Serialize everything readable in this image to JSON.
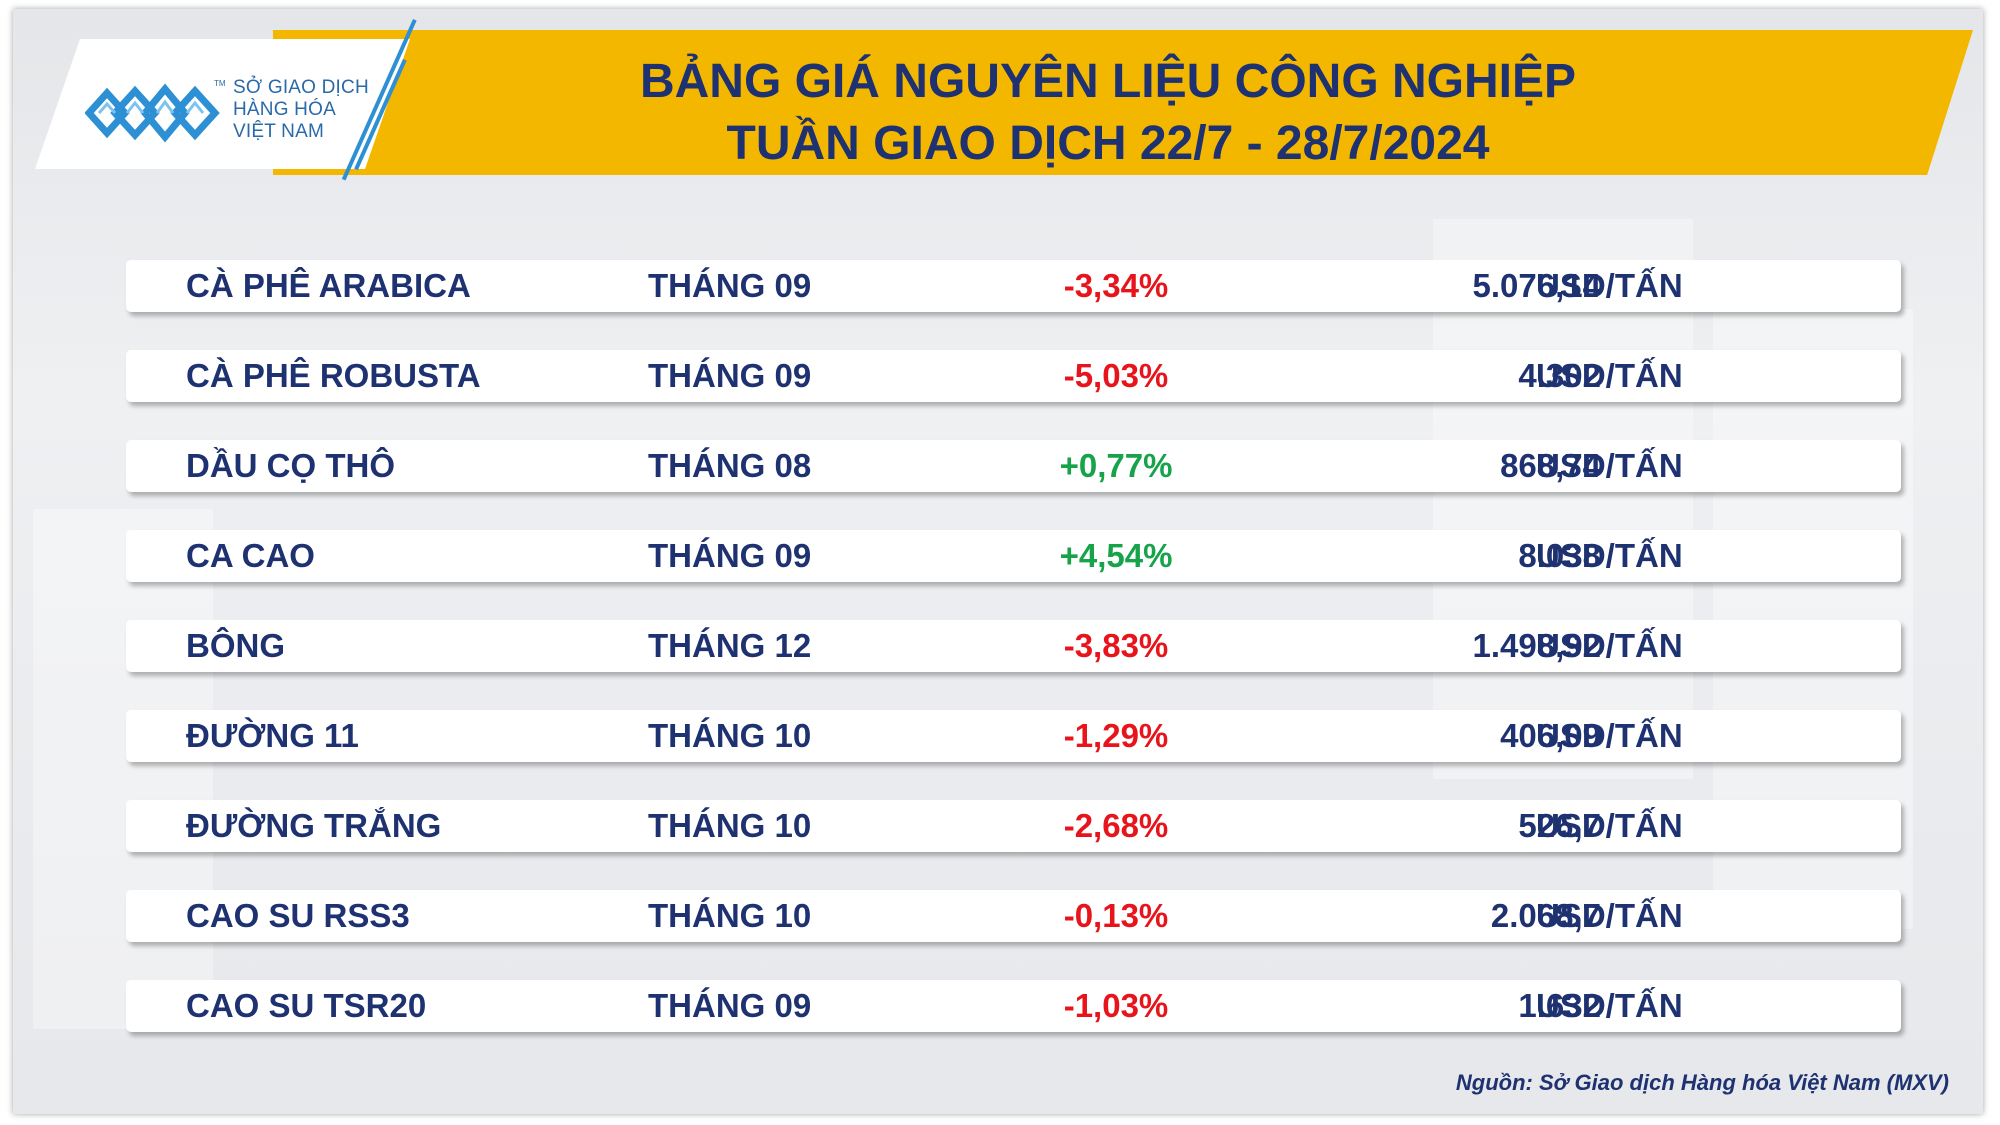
{
  "logo": {
    "line1": "SỞ GIAO DỊCH",
    "line2": "HÀNG HÓA",
    "line3": "VIỆT NAM",
    "tm": "TM",
    "color": "#2d8fd4"
  },
  "header": {
    "title_line1": "BẢNG GIÁ NGUYÊN LIỆU CÔNG NGHIỆP",
    "title_line2": "TUẦN GIAO DỊCH 22/7 - 28/7/2024",
    "band_color": "#f3b700",
    "text_color": "#1e3170"
  },
  "table": {
    "rows": [
      {
        "name": "CÀ PHÊ ARABICA",
        "month": "THÁNG 09",
        "change": "-3,34%",
        "direction": "down",
        "price": "5.076,14",
        "unit": "USD/TẤN"
      },
      {
        "name": "CÀ PHÊ ROBUSTA",
        "month": "THÁNG 09",
        "change": "-5,03%",
        "direction": "down",
        "price": "4.302",
        "unit": "USD/TẤN"
      },
      {
        "name": "DẦU CỌ THÔ",
        "month": "THÁNG 08",
        "change": "+0,77%",
        "direction": "up",
        "price": "868,74",
        "unit": "USD/TẤN"
      },
      {
        "name": "CA CAO",
        "month": "THÁNG 09",
        "change": "+4,54%",
        "direction": "up",
        "price": "8.038",
        "unit": "USD/TẤN"
      },
      {
        "name": "BÔNG",
        "month": "THÁNG 12",
        "change": "-3,83%",
        "direction": "down",
        "price": "1.498,92",
        "unit": "USD/TẤN"
      },
      {
        "name": "ĐƯỜNG 11",
        "month": "THÁNG 10",
        "change": "-1,29%",
        "direction": "down",
        "price": "406,09",
        "unit": "USD/TẤN"
      },
      {
        "name": "ĐƯỜNG TRẮNG",
        "month": "THÁNG 10",
        "change": "-2,68%",
        "direction": "down",
        "price": "526,7",
        "unit": "USD/TẤN"
      },
      {
        "name": "CAO SU RSS3",
        "month": "THÁNG 10",
        "change": "-0,13%",
        "direction": "down",
        "price": "2.068,7",
        "unit": "USD/TẤN"
      },
      {
        "name": "CAO SU TSR20",
        "month": "THÁNG 09",
        "change": "-1,03%",
        "direction": "down",
        "price": "1.632",
        "unit": "USD/TẤN"
      }
    ],
    "colors": {
      "negative": "#e8141c",
      "positive": "#16a34a",
      "text": "#1e3170"
    }
  },
  "footer": {
    "source": "Nguồn: Sở Giao dịch Hàng hóa Việt Nam (MXV)"
  }
}
